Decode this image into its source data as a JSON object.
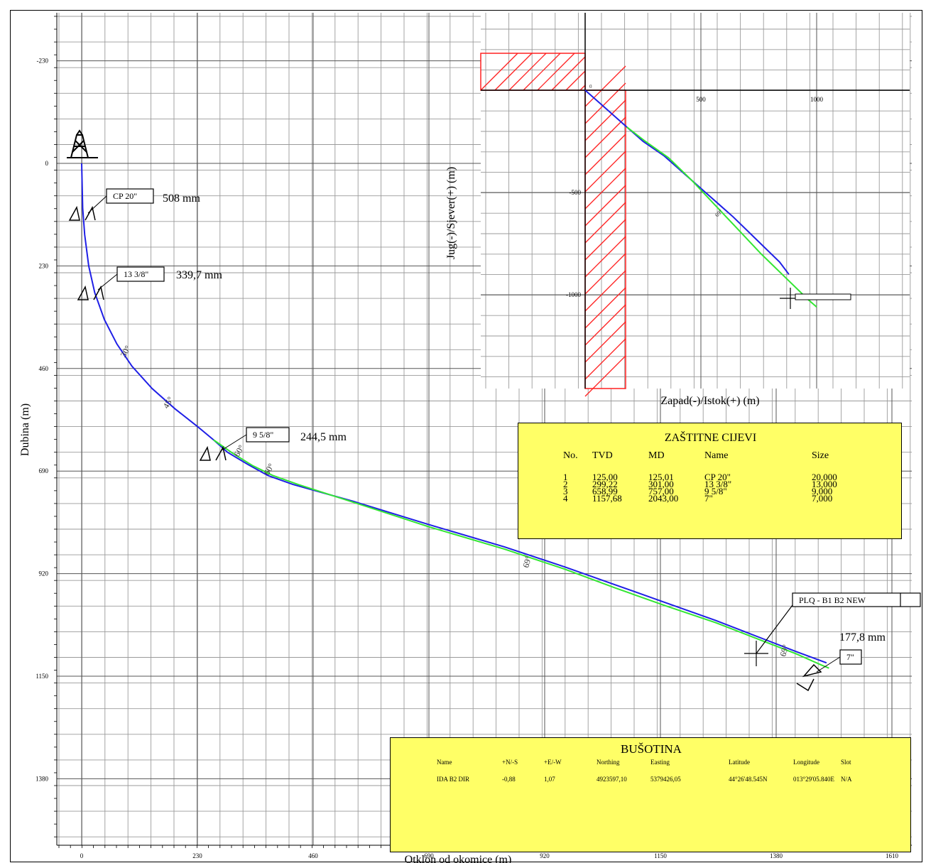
{
  "colors": {
    "grid": "#9a9a9a",
    "actual": "#1f1fe6",
    "plan": "#33e633",
    "lease": "#ff2020",
    "table": "#ffff66"
  },
  "chart_data": [
    {
      "type": "line",
      "xlabel": "Otklon od okomice (m)",
      "ylabel": "Dubina (m)",
      "xlim": [
        -50,
        1650
      ],
      "ylim": [
        1600,
        -350
      ],
      "x_ticks": [
        "0",
        "230",
        "460",
        "690",
        "920",
        "1150",
        "1380",
        "1610"
      ],
      "y_ticks": [
        "-230",
        "0",
        "230",
        "460",
        "690",
        "920",
        "1150",
        "1380"
      ],
      "grid": true,
      "series": [
        {
          "color": "#1f1fe6",
          "x": [
            0,
            2,
            6,
            14,
            26,
            45,
            70,
            100,
            140,
            185,
            230,
            262,
            290,
            330,
            370,
            420,
            540,
            690,
            840,
            960,
            1060,
            1160,
            1260,
            1340,
            1420,
            1480
          ],
          "y": [
            0,
            100,
            160,
            230,
            290,
            350,
            405,
            455,
            505,
            550,
            590,
            620,
            648,
            675,
            700,
            720,
            758,
            810,
            860,
            905,
            945,
            985,
            1025,
            1060,
            1095,
            1120
          ]
        },
        {
          "color": "#33e633",
          "x": [
            262,
            300,
            340,
            380,
            430,
            540,
            690,
            840,
            960,
            1060,
            1160,
            1260,
            1340,
            1420,
            1470,
            1485
          ],
          "y": [
            620,
            650,
            678,
            700,
            720,
            760,
            815,
            865,
            910,
            952,
            992,
            1030,
            1065,
            1100,
            1125,
            1132
          ]
        }
      ],
      "angle_labels": [
        "30°",
        "45°",
        "60°",
        "60°",
        "69°",
        "69°"
      ],
      "casings": [
        {
          "name": "CP 20\"",
          "size_label": "508 mm"
        },
        {
          "name": "13 3/8\"",
          "size_label": "339,7 mm"
        },
        {
          "name": "9 5/8\"",
          "size_label": "244,5 mm"
        },
        {
          "name": "7\"",
          "size_label": "177,8 mm"
        }
      ],
      "target_label": "PLQ - B1 B2 NEW"
    },
    {
      "type": "line",
      "xlabel": "Zapad(-)/Istok(+) (m)",
      "ylabel": "Jug(-)/Sjever(+) (m)",
      "xlim": [
        -450,
        1400
      ],
      "ylim": [
        -1300,
        300
      ],
      "x_ticks": [
        "500",
        "1000"
      ],
      "y_ticks": [
        "-500",
        "-1000"
      ],
      "grid": true,
      "series": [
        {
          "color": "#1f1fe6",
          "x": [
            0,
            80,
            180,
            250,
            340,
            440,
            540,
            640,
            740,
            840,
            880
          ],
          "y": [
            0,
            -80,
            -180,
            -250,
            -320,
            -420,
            -520,
            -620,
            -730,
            -840,
            -900
          ]
        },
        {
          "color": "#33e633",
          "x": [
            180,
            260,
            360,
            460,
            560,
            660,
            760,
            860,
            960,
            1000
          ],
          "y": [
            -180,
            -250,
            -330,
            -440,
            -560,
            -680,
            -800,
            -910,
            -1020,
            -1060
          ]
        }
      ],
      "small_labels": [
        "0",
        "69°"
      ]
    }
  ],
  "casing_table": {
    "title": "ZAŠTITNE CIJEVI",
    "headers": [
      "No.",
      "TVD",
      "MD",
      "Name",
      "Size"
    ],
    "rows": [
      [
        "1",
        "125,00",
        "125,01",
        "CP 20\"",
        "20,000"
      ],
      [
        "2",
        "299,22",
        "301,00",
        "13 3/8\"",
        "13,000"
      ],
      [
        "3",
        "658,99",
        "757,00",
        "9 5/8\"",
        "9,000"
      ],
      [
        "4",
        "1157,68",
        "2043,00",
        "7\"",
        "7,000"
      ]
    ]
  },
  "well_table": {
    "title": "BUŠOTINA",
    "headers": [
      "Name",
      "+N/-S",
      "+E/-W",
      "Northing",
      "Easting",
      "Latitude",
      "Longitude",
      "Slot"
    ],
    "row": [
      "IDA B2 DIR",
      "-0,88",
      "1,07",
      "4923597,10",
      "5379426,05",
      "44°26'48.545N",
      "013°29'05.840E",
      "N/A"
    ]
  }
}
